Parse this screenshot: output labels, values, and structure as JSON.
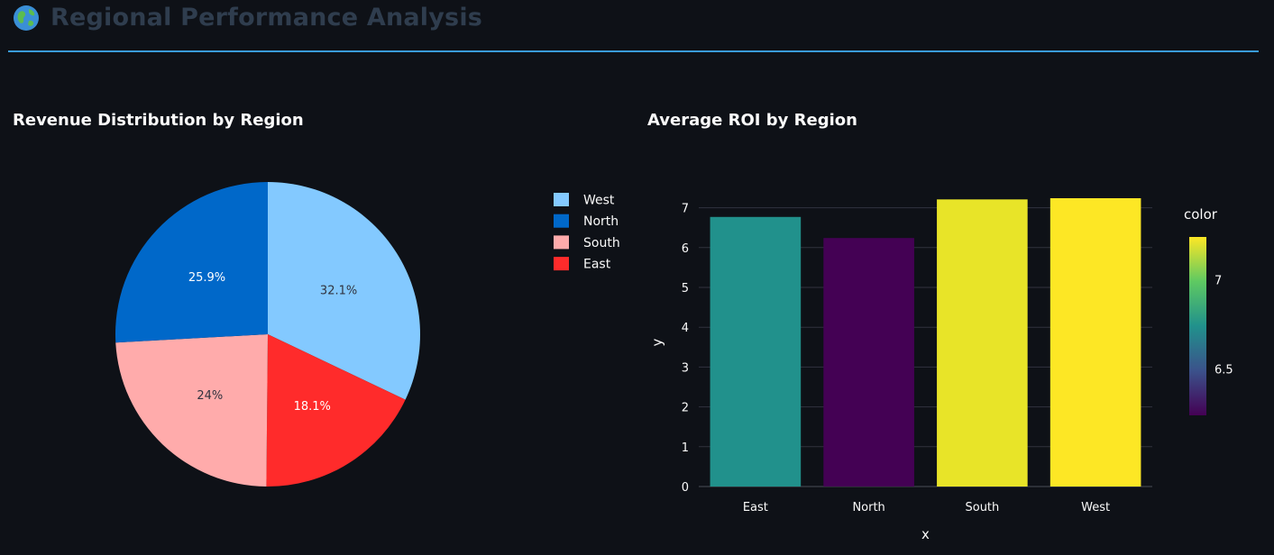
{
  "page": {
    "title": "Regional Performance Analysis",
    "title_icon": "globe-icon",
    "accent_color": "#3a9bd9"
  },
  "pie_section": {
    "title": "Revenue Distribution by Region"
  },
  "bar_section": {
    "title": "Average ROI by Region"
  },
  "chart_data": [
    {
      "type": "pie",
      "title": "Revenue Distribution by Region",
      "slices": [
        {
          "label": "West",
          "value": 32.1,
          "text": "32.1%",
          "color": "#83c9ff",
          "text_color": "#31333f"
        },
        {
          "label": "East",
          "value": 18.1,
          "text": "18.1%",
          "color": "#ff2b2b",
          "text_color": "#ffffff"
        },
        {
          "label": "South",
          "value": 24.0,
          "text": "24%",
          "color": "#ffabab",
          "text_color": "#31333f"
        },
        {
          "label": "North",
          "value": 25.9,
          "text": "25.9%",
          "color": "#0068c9",
          "text_color": "#ffffff"
        }
      ],
      "legend": {
        "position": "right",
        "entries": [
          {
            "label": "West",
            "color": "#83c9ff"
          },
          {
            "label": "North",
            "color": "#0068c9"
          },
          {
            "label": "South",
            "color": "#ffabab"
          },
          {
            "label": "East",
            "color": "#ff2b2b"
          }
        ]
      }
    },
    {
      "type": "bar",
      "title": "Average ROI by Region",
      "categories": [
        "East",
        "North",
        "South",
        "West"
      ],
      "values": [
        6.77,
        6.24,
        7.21,
        7.24
      ],
      "colors": [
        "#21918c",
        "#440154",
        "#e8e428",
        "#fde725"
      ],
      "xlabel": "x",
      "ylabel": "y",
      "ylim": [
        0,
        7.24
      ],
      "yticks": [
        "0",
        "1",
        "2",
        "3",
        "4",
        "5",
        "6",
        "7"
      ],
      "grid": true,
      "colorbar": {
        "title": "color",
        "range": [
          6.24,
          7.24
        ],
        "ticks": [
          "6.5",
          "7"
        ],
        "tick_values": [
          6.5,
          7
        ],
        "colorscale": [
          "#440154",
          "#3b528b",
          "#21918c",
          "#5ec962",
          "#fde725"
        ]
      }
    }
  ]
}
